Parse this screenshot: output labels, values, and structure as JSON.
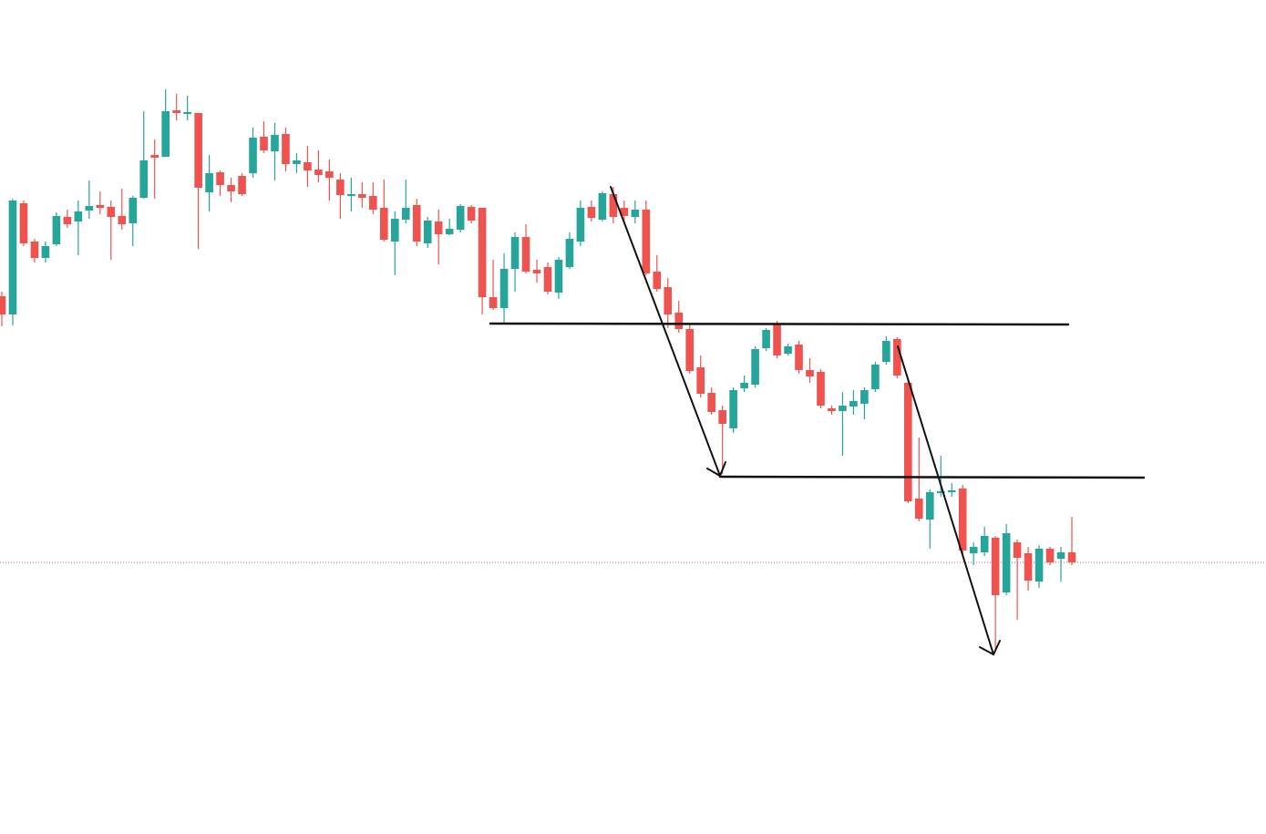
{
  "chart_data": {
    "type": "candlestick",
    "up_color": "#26a69a",
    "down_color": "#ef5350",
    "ylim": [
      0,
      915
    ],
    "price_line": true,
    "open": [
      590,
      570,
      692,
      650,
      632,
      647,
      677,
      672,
      684,
      690,
      688,
      678,
      670,
      698,
      745,
      743,
      794,
      790,
      791,
      704,
      726,
      712,
      722,
      725,
      765,
      749,
      768,
      735,
      737,
      729,
      727,
      718,
      700,
      702,
      700,
      687,
      650,
      674,
      690,
      648,
      672,
      658,
      663,
      688,
      687,
      589,
      577,
      620,
      655,
      619,
      622,
      594,
      622,
      650,
      688,
      674,
      702,
      687,
      677,
      685,
      617,
      600,
      572,
      554,
      512,
      484,
      465,
      445,
      489,
      493,
      533,
      560,
      527,
      537,
      509,
      507,
      467,
      464,
      469,
      472,
      488,
      518,
      543,
      495,
      368,
      345,
      374,
      375,
      379,
      308,
      309,
      325,
      265,
      320,
      308,
      277,
      313,
      302,
      309
    ],
    "high": [
      595,
      697,
      695,
      653,
      650,
      682,
      685,
      695,
      717,
      705,
      695,
      708,
      700,
      793,
      762,
      817,
      812,
      810,
      791,
      745,
      728,
      720,
      725,
      775,
      782,
      780,
      775,
      747,
      755,
      750,
      740,
      725,
      720,
      715,
      715,
      718,
      683,
      718,
      697,
      677,
      685,
      675,
      691,
      690,
      687,
      630,
      637,
      660,
      669,
      630,
      627,
      633,
      660,
      695,
      695,
      705,
      710,
      695,
      695,
      695,
      635,
      610,
      585,
      560,
      525,
      490,
      470,
      490,
      503,
      535,
      555,
      563,
      538,
      541,
      522,
      510,
      470,
      485,
      487,
      490,
      518,
      546,
      545,
      497,
      435,
      378,
      415,
      385,
      383,
      320,
      337,
      327,
      340,
      323,
      315,
      317,
      315,
      315,
      348
    ],
    "low": [
      557,
      558,
      645,
      627,
      627,
      645,
      665,
      635,
      675,
      680,
      630,
      663,
      645,
      697,
      697,
      743,
      783,
      783,
      642,
      683,
      700,
      693,
      700,
      720,
      747,
      717,
      727,
      725,
      710,
      715,
      695,
      675,
      683,
      687,
      680,
      650,
      613,
      670,
      645,
      643,
      625,
      657,
      660,
      670,
      570,
      575,
      560,
      595,
      615,
      605,
      592,
      587,
      620,
      645,
      672,
      672,
      670,
      670,
      670,
      613,
      595,
      555,
      550,
      505,
      479,
      460,
      395,
      440,
      485,
      490,
      530,
      522,
      525,
      505,
      495,
      467,
      460,
      415,
      460,
      455,
      485,
      515,
      500,
      363,
      343,
      313,
      370,
      370,
      305,
      295,
      305,
      200,
      262,
      235,
      267,
      270,
      295,
      277,
      295
    ],
    "close": [
      570,
      695,
      648,
      632,
      645,
      678,
      669,
      683,
      689,
      687,
      677,
      669,
      698,
      739,
      742,
      793,
      791,
      792,
      709,
      725,
      712,
      705,
      702,
      764,
      750,
      767,
      735,
      739,
      728,
      723,
      720,
      701,
      702,
      698,
      685,
      652,
      675,
      687,
      650,
      673,
      658,
      664,
      689,
      673,
      589,
      577,
      620,
      655,
      617,
      615,
      595,
      630,
      653,
      687,
      676,
      703,
      677,
      678,
      685,
      615,
      598,
      570,
      554,
      508,
      483,
      463,
      450,
      487,
      495,
      532,
      553,
      525,
      535,
      509,
      502,
      470,
      464,
      470,
      475,
      487,
      515,
      541,
      503,
      365,
      346,
      375,
      376,
      377,
      311,
      315,
      327,
      262,
      330,
      303,
      278,
      313,
      298,
      309,
      298
    ]
  }
}
